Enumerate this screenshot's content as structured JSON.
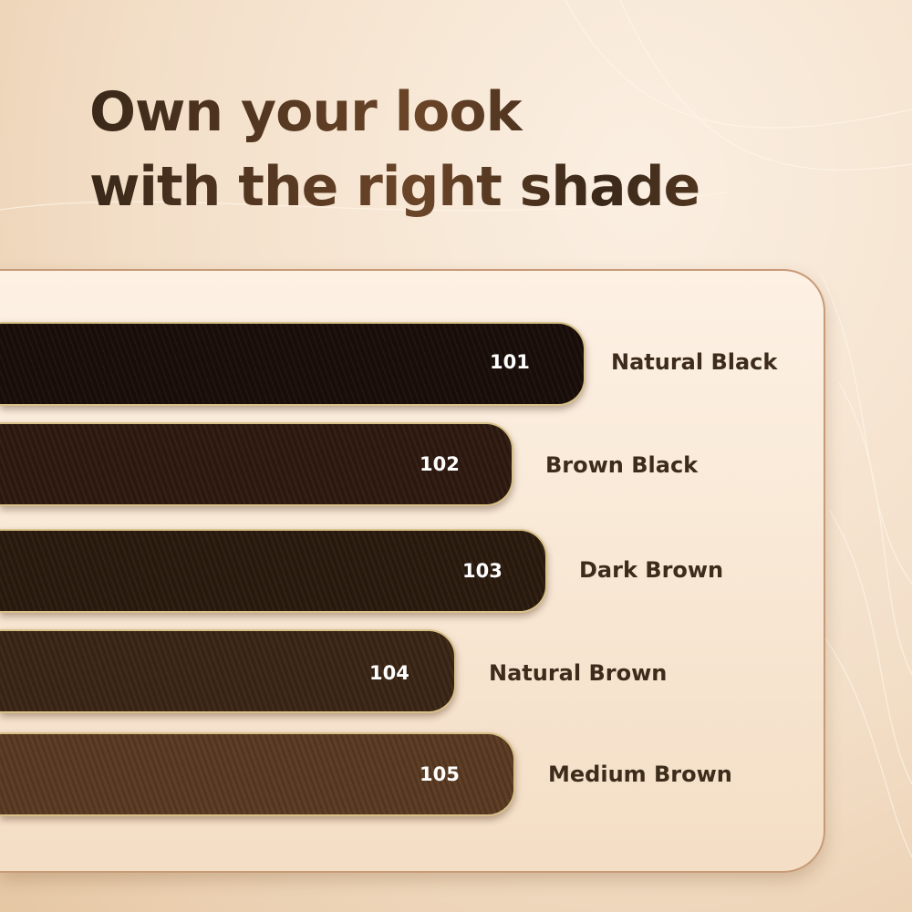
{
  "headline": {
    "line1": "Own your look",
    "line2": "with the right shade"
  },
  "shades": [
    {
      "code": "101",
      "name": "Natural Black",
      "color": "#1a0e0a"
    },
    {
      "code": "102",
      "name": "Brown Black",
      "color": "#2e1a10"
    },
    {
      "code": "103",
      "name": "Dark Brown",
      "color": "#2b1b0f"
    },
    {
      "code": "104",
      "name": "Natural Brown",
      "color": "#3b2616"
    },
    {
      "code": "105",
      "name": "Medium Brown",
      "color": "#5a3a22"
    }
  ]
}
